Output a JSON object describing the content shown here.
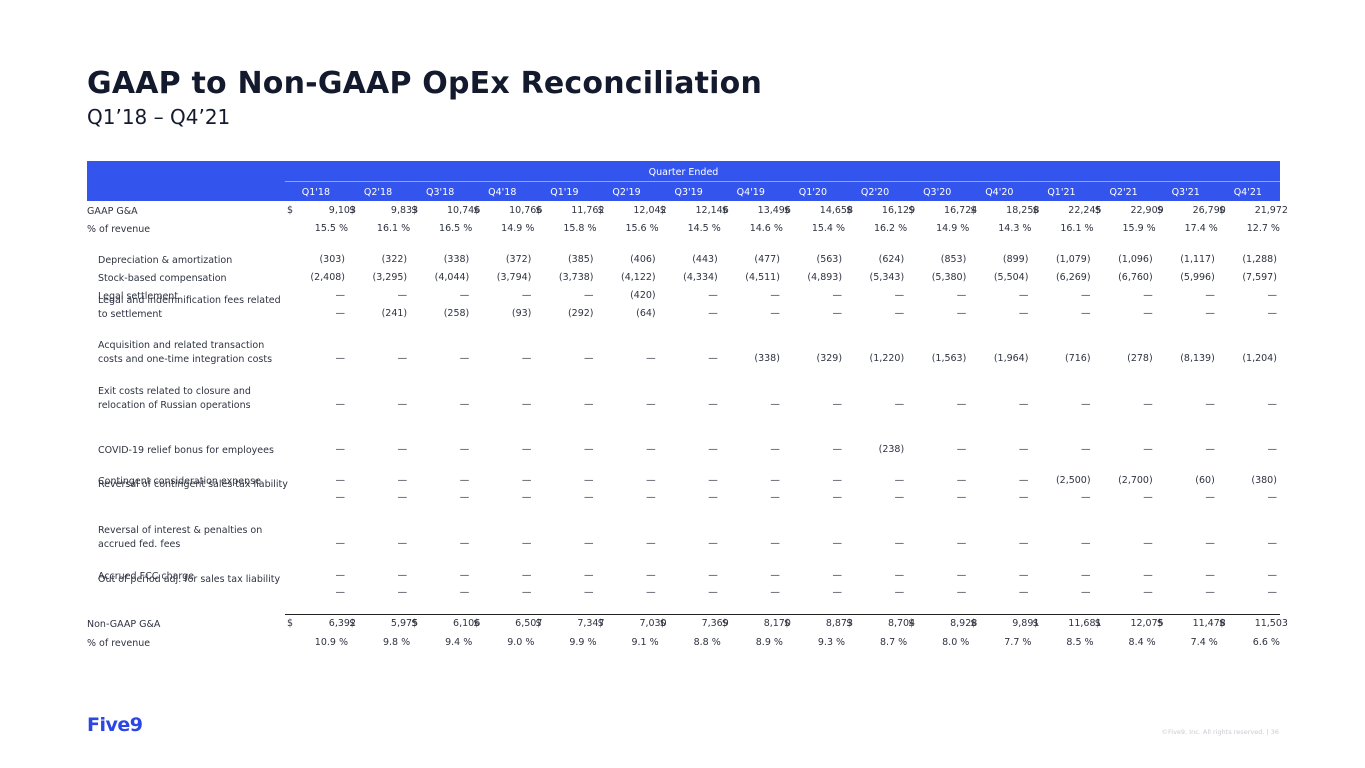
{
  "title": "GAAP to Non-GAAP OpEx Reconciliation",
  "subtitle": "Q1’18 – Q4’21",
  "header_title": "Quarter Ended",
  "quarters": [
    "Q1'18",
    "Q2'18",
    "Q3'18",
    "Q4'18",
    "Q1'19",
    "Q2'19",
    "Q3'19",
    "Q4'19",
    "Q1'20",
    "Q2'20",
    "Q3'20",
    "Q4'20",
    "Q1'21",
    "Q2'21",
    "Q3'21",
    "Q4'21"
  ],
  "rows": [
    {
      "label": "GAAP G&A",
      "type": "dollar",
      "values": [
        "9,103",
        "9,833",
        "10,746",
        "10,766",
        "11,762",
        "12,042",
        "12,146",
        "13,496",
        "14,658",
        "16,129",
        "16,724",
        "18,258",
        "22,245",
        "22,909",
        "26,790",
        "21,972"
      ]
    },
    {
      "label": "% of revenue",
      "type": "pct",
      "values": [
        "15.5 %",
        "16.1 %",
        "16.5 %",
        "14.9 %",
        "15.8 %",
        "15.6 %",
        "14.5 %",
        "14.6 %",
        "15.4 %",
        "16.2 %",
        "14.9 %",
        "14.3 %",
        "16.1 %",
        "15.9 %",
        "17.4 %",
        "12.7 %"
      ]
    },
    {
      "label": "Depreciation & amortization",
      "type": "adj",
      "values": [
        "(303)",
        "(322)",
        "(338)",
        "(372)",
        "(385)",
        "(406)",
        "(443)",
        "(477)",
        "(563)",
        "(624)",
        "(853)",
        "(899)",
        "(1,079)",
        "(1,096)",
        "(1,117)",
        "(1,288)"
      ]
    },
    {
      "label": "Stock-based compensation",
      "type": "adj",
      "values": [
        "(2,408)",
        "(3,295)",
        "(4,044)",
        "(3,794)",
        "(3,738)",
        "(4,122)",
        "(4,334)",
        "(4,511)",
        "(4,893)",
        "(5,343)",
        "(5,380)",
        "(5,504)",
        "(6,269)",
        "(6,760)",
        "(5,996)",
        "(7,597)"
      ]
    },
    {
      "label": "Legal settlement",
      "type": "adj",
      "values": [
        "—",
        "—",
        "—",
        "—",
        "—",
        "(420)",
        "—",
        "—",
        "—",
        "—",
        "—",
        "—",
        "—",
        "—",
        "—",
        "—"
      ]
    },
    {
      "label": "Legal and indemnification fees related to settlement",
      "type": "adj",
      "values": [
        "—",
        "(241)",
        "(258)",
        "(93)",
        "(292)",
        "(64)",
        "—",
        "—",
        "—",
        "—",
        "—",
        "—",
        "—",
        "—",
        "—",
        "—"
      ]
    },
    {
      "label": "Acquisition and related transaction costs and one-time integration costs",
      "type": "adj",
      "values": [
        "—",
        "—",
        "—",
        "—",
        "—",
        "—",
        "—",
        "(338)",
        "(329)",
        "(1,220)",
        "(1,563)",
        "(1,964)",
        "(716)",
        "(278)",
        "(8,139)",
        "(1,204)"
      ]
    },
    {
      "label": "Exit costs related to closure and relocation of Russian operations",
      "type": "adj",
      "values": [
        "—",
        "—",
        "—",
        "—",
        "—",
        "—",
        "—",
        "—",
        "—",
        "—",
        "—",
        "—",
        "—",
        "—",
        "—",
        "—"
      ]
    },
    {
      "label": "COVID-19 relief bonus for employees",
      "type": "adj",
      "values": [
        "—",
        "—",
        "—",
        "—",
        "—",
        "—",
        "—",
        "—",
        "—",
        "(238)",
        "—",
        "—",
        "—",
        "—",
        "—",
        "—"
      ]
    },
    {
      "label": "Contingent consideration expense",
      "type": "adj",
      "values": [
        "—",
        "—",
        "—",
        "—",
        "—",
        "—",
        "—",
        "—",
        "—",
        "—",
        "—",
        "—",
        "(2,500)",
        "(2,700)",
        "(60)",
        "(380)"
      ]
    },
    {
      "label": "Reversal of contingent sales tax liability",
      "type": "adj",
      "values": [
        "—",
        "—",
        "—",
        "—",
        "—",
        "—",
        "—",
        "—",
        "—",
        "—",
        "—",
        "—",
        "—",
        "—",
        "—",
        "—"
      ]
    },
    {
      "label": "Reversal of interest & penalties on accrued fed. fees",
      "type": "adj",
      "values": [
        "—",
        "—",
        "—",
        "—",
        "—",
        "—",
        "—",
        "—",
        "—",
        "—",
        "—",
        "—",
        "—",
        "—",
        "—",
        "—"
      ]
    },
    {
      "label": "Accrued FCC charge",
      "type": "adj",
      "values": [
        "—",
        "—",
        "—",
        "—",
        "—",
        "—",
        "—",
        "—",
        "—",
        "—",
        "—",
        "—",
        "—",
        "—",
        "—",
        "—"
      ]
    },
    {
      "label": "Out of period adj. for sales tax liability",
      "type": "adj",
      "values": [
        "—",
        "—",
        "—",
        "—",
        "—",
        "—",
        "—",
        "—",
        "—",
        "—",
        "—",
        "—",
        "—",
        "—",
        "—",
        "—"
      ]
    },
    {
      "label": "Non-GAAP G&A",
      "type": "dollar",
      "values": [
        "6,392",
        "5,975",
        "6,106",
        "6,507",
        "7,347",
        "7,030",
        "7,369",
        "8,170",
        "8,873",
        "8,704",
        "8,928",
        "9,891",
        "11,681",
        "12,075",
        "11,478",
        "11,503"
      ]
    },
    {
      "label": "% of revenue",
      "type": "pct",
      "values": [
        "10.9 %",
        "9.8 %",
        "9.4 %",
        "9.0 %",
        "9.9 %",
        "9.1 %",
        "8.8 %",
        "8.9 %",
        "9.3 %",
        "8.7 %",
        "8.0 %",
        "7.7 %",
        "8.5 %",
        "8.4 %",
        "7.4 %",
        "6.6 %"
      ]
    }
  ],
  "currency_symbol": "$",
  "logo_text": "Five9",
  "footer_text": "©Five9, Inc. All rights reserved. | 36"
}
